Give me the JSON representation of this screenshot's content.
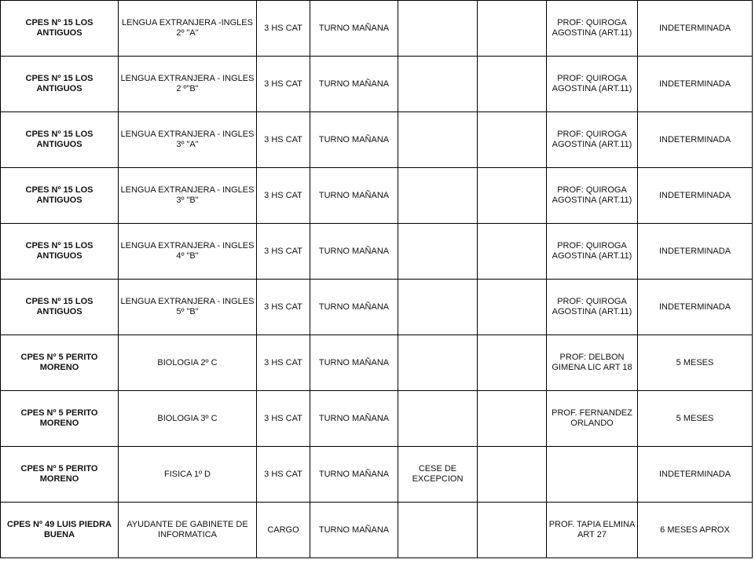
{
  "rows": [
    {
      "school": "CPES Nº 15 LOS ANTIGUOS",
      "subject": "LENGUA EXTRANJERA -INGLES  2º \"A\"",
      "hours": "3 HS CAT",
      "shift": "TURNO MAÑANA",
      "reason": "",
      "col6": "",
      "teacher": "PROF: QUIROGA AGOSTINA (ART.11)",
      "duration": "INDETERMINADA"
    },
    {
      "school": "CPES Nº 15 LOS ANTIGUOS",
      "subject": "LENGUA EXTRANJERA - INGLES 2 º\"B\"",
      "hours": "3 HS CAT",
      "shift": "TURNO MAÑANA",
      "reason": "",
      "col6": "",
      "teacher": "PROF: QUIROGA AGOSTINA (ART.11)",
      "duration": "INDETERMINADA"
    },
    {
      "school": "CPES Nº 15 LOS ANTIGUOS",
      "subject": "LENGUA EXTRANJERA - INGLES 3º \"A\"",
      "hours": "3 HS CAT",
      "shift": "TURNO MAÑANA",
      "reason": "",
      "col6": "",
      "teacher": "PROF: QUIROGA AGOSTINA (ART.11)",
      "duration": "INDETERMINADA"
    },
    {
      "school": "CPES Nº 15 LOS ANTIGUOS",
      "subject": "LENGUA EXTRANJERA - INGLES 3º \"B\"",
      "hours": "3 HS CAT",
      "shift": "TURNO MAÑANA",
      "reason": "",
      "col6": "",
      "teacher": "PROF: QUIROGA AGOSTINA (ART.11)",
      "duration": "INDETERMINADA"
    },
    {
      "school": "CPES Nº 15 LOS ANTIGUOS",
      "subject": "LENGUA EXTRANJERA - INGLES 4º \"B\"",
      "hours": "3 HS CAT",
      "shift": "TURNO MAÑANA",
      "reason": "",
      "col6": "",
      "teacher": "PROF: QUIROGA AGOSTINA (ART.11)",
      "duration": "INDETERMINADA"
    },
    {
      "school": "CPES Nº 15 LOS ANTIGUOS",
      "subject": "LENGUA EXTRANJERA - INGLES 5º \"B\"",
      "hours": "3 HS CAT",
      "shift": "TURNO MAÑANA",
      "reason": "",
      "col6": "",
      "teacher": "PROF: QUIROGA AGOSTINA (ART.11)",
      "duration": "INDETERMINADA"
    },
    {
      "school": "CPES Nº 5 PERITO MORENO",
      "subject": "BIOLOGIA 2º C",
      "hours": "3 HS CAT",
      "shift": "TURNO MAÑANA",
      "reason": "",
      "col6": "",
      "teacher": "PROF: DELBON GIMENA LIC ART 18",
      "duration": "5 MESES"
    },
    {
      "school": "CPES Nº 5 PERITO MORENO",
      "subject": "BIOLOGIA 3º C",
      "hours": "3 HS CAT",
      "shift": "TURNO MAÑANA",
      "reason": "",
      "col6": "",
      "teacher": "PROF. FERNANDEZ ORLANDO",
      "duration": "5 MESES"
    },
    {
      "school": "CPES Nº 5 PERITO MORENO",
      "subject": "FISICA 1º D",
      "hours": "3 HS CAT",
      "shift": "TURNO MAÑANA",
      "reason": "CESE DE EXCEPCION",
      "col6": "",
      "teacher": "",
      "duration": "INDETERMINADA"
    },
    {
      "school": "CPES Nº 49 LUIS PIEDRA BUENA",
      "subject": "AYUDANTE DE GABINETE DE INFORMATICA",
      "hours": "CARGO",
      "shift": "TURNO MAÑANA",
      "reason": "",
      "col6": "",
      "teacher": "PROF. TAPIA ELMINA ART 27",
      "duration": "6 MESES APROX"
    }
  ]
}
